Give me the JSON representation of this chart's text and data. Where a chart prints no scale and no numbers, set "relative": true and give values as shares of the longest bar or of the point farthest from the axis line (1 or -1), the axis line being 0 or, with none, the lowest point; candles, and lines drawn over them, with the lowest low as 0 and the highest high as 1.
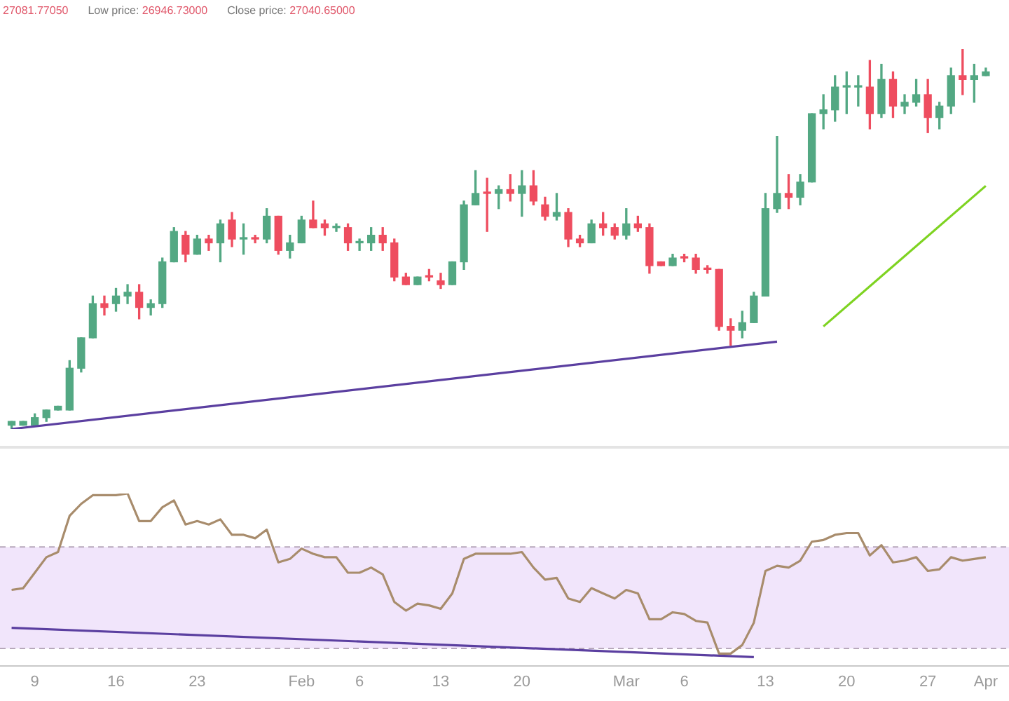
{
  "chart_data": [
    {
      "type": "candlestick",
      "relative": true,
      "tick_labels": false,
      "legend": false,
      "annotations": [
        "27081.77050",
        "Low price: 26946.73000",
        "Close price: 27040.65000"
      ],
      "xlim": [
        "--01-06",
        "--04-03"
      ],
      "x": [
        "--01-07",
        "--01-08",
        "--01-09",
        "--01-10",
        "--01-11",
        "--01-12",
        "--01-13",
        "--01-14",
        "--01-15",
        "--01-16",
        "--01-17",
        "--01-18",
        "--01-19",
        "--01-20",
        "--01-21",
        "--01-22",
        "--01-23",
        "--01-24",
        "--01-25",
        "--01-26",
        "--01-27",
        "--01-28",
        "--01-29",
        "--01-30",
        "--01-31",
        "--02-01",
        "--02-02",
        "--02-03",
        "--02-04",
        "--02-05",
        "--02-06",
        "--02-07",
        "--02-08",
        "--02-09",
        "--02-10",
        "--02-11",
        "--02-12",
        "--02-13",
        "--02-14",
        "--02-15",
        "--02-16",
        "--02-17",
        "--02-18",
        "--02-19",
        "--02-20",
        "--02-21",
        "--02-22",
        "--02-23",
        "--02-24",
        "--02-25",
        "--02-26",
        "--02-27",
        "--02-28",
        "--03-01",
        "--03-02",
        "--03-03",
        "--03-04",
        "--03-05",
        "--03-06",
        "--03-07",
        "--03-08",
        "--03-09",
        "--03-10",
        "--03-11",
        "--03-12",
        "--03-13",
        "--03-14",
        "--03-15",
        "--03-16",
        "--03-17",
        "--03-18",
        "--03-19",
        "--03-20",
        "--03-21",
        "--03-22",
        "--03-23",
        "--03-24",
        "--03-25",
        "--03-26",
        "--03-27",
        "--03-28",
        "--03-29",
        "--03-30",
        "--03-31",
        "--04-01"
      ],
      "ohlc": [
        [
          0.01,
          0.02,
          0,
          0.02
        ],
        [
          0.01,
          0.02,
          0.01,
          0.02
        ],
        [
          0.01,
          0.04,
          0.01,
          0.03
        ],
        [
          0.03,
          0.05,
          0.02,
          0.05
        ],
        [
          0.05,
          0.06,
          0.05,
          0.06
        ],
        [
          0.05,
          0.18,
          0.05,
          0.16
        ],
        [
          0.16,
          0.24,
          0.15,
          0.24
        ],
        [
          0.24,
          0.35,
          0.24,
          0.33
        ],
        [
          0.33,
          0.35,
          0.3,
          0.32
        ],
        [
          0.33,
          0.37,
          0.31,
          0.35
        ],
        [
          0.35,
          0.38,
          0.33,
          0.36
        ],
        [
          0.36,
          0.38,
          0.29,
          0.32
        ],
        [
          0.32,
          0.34,
          0.3,
          0.33
        ],
        [
          0.33,
          0.45,
          0.32,
          0.44
        ],
        [
          0.44,
          0.53,
          0.44,
          0.52
        ],
        [
          0.51,
          0.52,
          0.44,
          0.46
        ],
        [
          0.46,
          0.51,
          0.46,
          0.5
        ],
        [
          0.5,
          0.51,
          0.47,
          0.49
        ],
        [
          0.49,
          0.55,
          0.44,
          0.54
        ],
        [
          0.55,
          0.57,
          0.48,
          0.5
        ],
        [
          0.5,
          0.54,
          0.46,
          0.5
        ],
        [
          0.5,
          0.51,
          0.49,
          0.5
        ],
        [
          0.5,
          0.58,
          0.49,
          0.56
        ],
        [
          0.56,
          0.56,
          0.46,
          0.47
        ],
        [
          0.47,
          0.51,
          0.45,
          0.49
        ],
        [
          0.49,
          0.56,
          0.49,
          0.55
        ],
        [
          0.55,
          0.6,
          0.53,
          0.53
        ],
        [
          0.54,
          0.55,
          0.51,
          0.53
        ],
        [
          0.53,
          0.54,
          0.52,
          0.53
        ],
        [
          0.53,
          0.54,
          0.47,
          0.49
        ],
        [
          0.49,
          0.5,
          0.47,
          0.49
        ],
        [
          0.49,
          0.53,
          0.47,
          0.51
        ],
        [
          0.51,
          0.53,
          0.47,
          0.49
        ],
        [
          0.49,
          0.5,
          0.39,
          0.4
        ],
        [
          0.4,
          0.41,
          0.38,
          0.38
        ],
        [
          0.38,
          0.4,
          0.38,
          0.4
        ],
        [
          0.4,
          0.42,
          0.39,
          0.4
        ],
        [
          0.39,
          0.41,
          0.37,
          0.38
        ],
        [
          0.38,
          0.44,
          0.38,
          0.44
        ],
        [
          0.44,
          0.6,
          0.42,
          0.59
        ],
        [
          0.59,
          0.68,
          0.59,
          0.62
        ],
        [
          0.62,
          0.66,
          0.52,
          0.62
        ],
        [
          0.62,
          0.64,
          0.58,
          0.63
        ],
        [
          0.63,
          0.67,
          0.6,
          0.62
        ],
        [
          0.62,
          0.68,
          0.56,
          0.64
        ],
        [
          0.64,
          0.68,
          0.59,
          0.6
        ],
        [
          0.59,
          0.61,
          0.55,
          0.56
        ],
        [
          0.56,
          0.62,
          0.55,
          0.57
        ],
        [
          0.57,
          0.58,
          0.48,
          0.5
        ],
        [
          0.5,
          0.51,
          0.48,
          0.49
        ],
        [
          0.49,
          0.55,
          0.49,
          0.54
        ],
        [
          0.54,
          0.57,
          0.51,
          0.53
        ],
        [
          0.53,
          0.54,
          0.5,
          0.51
        ],
        [
          0.51,
          0.58,
          0.5,
          0.54
        ],
        [
          0.54,
          0.56,
          0.52,
          0.53
        ],
        [
          0.53,
          0.54,
          0.41,
          0.43
        ],
        [
          0.44,
          0.44,
          0.43,
          0.43
        ],
        [
          0.43,
          0.46,
          0.43,
          0.45
        ],
        [
          0.45,
          0.46,
          0.44,
          0.45
        ],
        [
          0.45,
          0.46,
          0.41,
          0.42
        ],
        [
          0.42,
          0.43,
          0.41,
          0.42
        ],
        [
          0.42,
          0.42,
          0.26,
          0.27
        ],
        [
          0.27,
          0.29,
          0.22,
          0.26
        ],
        [
          0.26,
          0.31,
          0.24,
          0.28
        ],
        [
          0.28,
          0.36,
          0.28,
          0.35
        ],
        [
          0.35,
          0.62,
          0.35,
          0.58
        ],
        [
          0.58,
          0.77,
          0.57,
          0.62
        ],
        [
          0.62,
          0.67,
          0.58,
          0.61
        ],
        [
          0.61,
          0.67,
          0.59,
          0.65
        ],
        [
          0.65,
          0.83,
          0.65,
          0.83
        ],
        [
          0.83,
          0.88,
          0.79,
          0.84
        ],
        [
          0.84,
          0.93,
          0.81,
          0.9
        ],
        [
          0.9,
          0.94,
          0.83,
          0.9
        ],
        [
          0.9,
          0.93,
          0.85,
          0.9
        ],
        [
          0.9,
          0.97,
          0.79,
          0.83
        ],
        [
          0.83,
          0.96,
          0.82,
          0.92
        ],
        [
          0.92,
          0.94,
          0.82,
          0.85
        ],
        [
          0.85,
          0.88,
          0.83,
          0.86
        ],
        [
          0.86,
          0.92,
          0.85,
          0.88
        ],
        [
          0.88,
          0.92,
          0.78,
          0.82
        ],
        [
          0.82,
          0.86,
          0.79,
          0.85
        ],
        [
          0.85,
          0.95,
          0.83,
          0.93
        ],
        [
          0.93,
          1,
          0.88,
          0.92
        ],
        [
          0.92,
          0.96,
          0.86,
          0.93
        ],
        [
          0.93,
          0.95,
          0.93,
          0.94
        ]
      ],
      "colors": [
        "#53a883",
        "#53a883",
        "#53a883",
        "#53a883",
        "#53a883",
        "#53a883",
        "#53a883",
        "#53a883",
        "#ee4d5f",
        "#53a883",
        "#53a883",
        "#ee4d5f",
        "#53a883",
        "#53a883",
        "#53a883",
        "#ee4d5f",
        "#53a883",
        "#ee4d5f",
        "#53a883",
        "#ee4d5f",
        "#53a883",
        "#ee4d5f",
        "#53a883",
        "#ee4d5f",
        "#53a883",
        "#53a883",
        "#ee4d5f",
        "#ee4d5f",
        "#53a883",
        "#ee4d5f",
        "#53a883",
        "#53a883",
        "#ee4d5f",
        "#ee4d5f",
        "#ee4d5f",
        "#53a883",
        "#ee4d5f",
        "#ee4d5f",
        "#53a883",
        "#53a883",
        "#53a883",
        "#ee4d5f",
        "#53a883",
        "#ee4d5f",
        "#53a883",
        "#ee4d5f",
        "#ee4d5f",
        "#53a883",
        "#ee4d5f",
        "#ee4d5f",
        "#53a883",
        "#ee4d5f",
        "#ee4d5f",
        "#53a883",
        "#ee4d5f",
        "#ee4d5f",
        "#ee4d5f",
        "#53a883",
        "#ee4d5f",
        "#ee4d5f",
        "#ee4d5f",
        "#ee4d5f",
        "#ee4d5f",
        "#53a883",
        "#53a883",
        "#53a883",
        "#53a883",
        "#ee4d5f",
        "#53a883",
        "#53a883",
        "#53a883",
        "#53a883",
        "#53a883",
        "#53a883",
        "#ee4d5f",
        "#53a883",
        "#ee4d5f",
        "#53a883",
        "#53a883",
        "#ee4d5f",
        "#53a883",
        "#53a883",
        "#ee4d5f",
        "#53a883",
        "#53a883"
      ],
      "series": [
        {
          "type": "line",
          "color": "#5b3fa0",
          "x": [
            "--01-07",
            "--03-14"
          ],
          "values": [
            0,
            0.23
          ]
        },
        {
          "type": "line",
          "color": "#7ed321",
          "x": [
            "--03-18",
            "--04-01"
          ],
          "values": [
            0.27,
            0.64
          ]
        }
      ]
    },
    {
      "type": "line",
      "relative": true,
      "tick_labels": "x",
      "legend": false,
      "xlim": [
        "--01-06",
        "--04-03"
      ],
      "xticks": [
        {
          "value": "--01-09",
          "label": "9"
        },
        {
          "value": "--01-16",
          "label": "16"
        },
        {
          "value": "--01-23",
          "label": "23"
        },
        {
          "value": "--02-01",
          "label": "Feb"
        },
        {
          "value": "--02-06",
          "label": "6"
        },
        {
          "value": "--02-13",
          "label": "13"
        },
        {
          "value": "--02-20",
          "label": "20"
        },
        {
          "value": "--03-01",
          "label": "Mar"
        },
        {
          "value": "--03-06",
          "label": "6"
        },
        {
          "value": "--03-13",
          "label": "13"
        },
        {
          "value": "--03-20",
          "label": "20"
        },
        {
          "value": "--03-27",
          "label": "27"
        },
        {
          "value": "--04-01",
          "label": "Apr"
        }
      ],
      "bands": [
        {
          "axis": "y",
          "from": 0.1,
          "to": 0.69,
          "color": "#f1e5fb"
        }
      ],
      "ref_lines": [
        {
          "axis": "y",
          "value": 0.69,
          "color": "#b8a8bc",
          "line_style": "dashed"
        },
        {
          "axis": "y",
          "value": 0.1,
          "color": "#b8a8bc",
          "line_style": "dashed"
        }
      ],
      "series": [
        {
          "color": "#a88c6c",
          "x": [
            "--01-07",
            "--01-08",
            "--01-09",
            "--01-10",
            "--01-11",
            "--01-12",
            "--01-13",
            "--01-14",
            "--01-15",
            "--01-16",
            "--01-17",
            "--01-18",
            "--01-19",
            "--01-20",
            "--01-21",
            "--01-22",
            "--01-23",
            "--01-24",
            "--01-25",
            "--01-26",
            "--01-27",
            "--01-28",
            "--01-29",
            "--01-30",
            "--01-31",
            "--02-01",
            "--02-02",
            "--02-03",
            "--02-04",
            "--02-05",
            "--02-06",
            "--02-07",
            "--02-08",
            "--02-09",
            "--02-10",
            "--02-11",
            "--02-12",
            "--02-13",
            "--02-14",
            "--02-15",
            "--02-16",
            "--02-17",
            "--02-18",
            "--02-19",
            "--02-20",
            "--02-21",
            "--02-22",
            "--02-23",
            "--02-24",
            "--02-25",
            "--02-26",
            "--02-27",
            "--02-28",
            "--03-01",
            "--03-02",
            "--03-03",
            "--03-04",
            "--03-05",
            "--03-06",
            "--03-07",
            "--03-08",
            "--03-09",
            "--03-10",
            "--03-11",
            "--03-12",
            "--03-13",
            "--03-14",
            "--03-15",
            "--03-16",
            "--03-17",
            "--03-18",
            "--03-19",
            "--03-20",
            "--03-21",
            "--03-22",
            "--03-23",
            "--03-24",
            "--03-25",
            "--03-26",
            "--03-27",
            "--03-28",
            "--03-29",
            "--03-30",
            "--03-31",
            "--04-01"
          ],
          "values": [
            0.44,
            0.45,
            0.54,
            0.63,
            0.66,
            0.87,
            0.94,
            0.99,
            0.99,
            0.99,
            1,
            0.84,
            0.84,
            0.92,
            0.96,
            0.82,
            0.84,
            0.82,
            0.85,
            0.76,
            0.76,
            0.74,
            0.79,
            0.6,
            0.62,
            0.68,
            0.65,
            0.63,
            0.63,
            0.54,
            0.54,
            0.57,
            0.53,
            0.37,
            0.32,
            0.36,
            0.35,
            0.33,
            0.42,
            0.62,
            0.65,
            0.65,
            0.65,
            0.65,
            0.66,
            0.57,
            0.5,
            0.51,
            0.39,
            0.37,
            0.45,
            0.42,
            0.39,
            0.44,
            0.42,
            0.27,
            0.27,
            0.31,
            0.3,
            0.26,
            0.25,
            0.07,
            0.07,
            0.12,
            0.25,
            0.55,
            0.58,
            0.57,
            0.61,
            0.72,
            0.73,
            0.76,
            0.77,
            0.77,
            0.64,
            0.7,
            0.6,
            0.61,
            0.63,
            0.55,
            0.56,
            0.63,
            0.61,
            0.62,
            0.63
          ]
        },
        {
          "color": "#5b3fa0",
          "x": [
            "--01-07",
            "--03-12"
          ],
          "values": [
            0.22,
            0.05
          ]
        }
      ]
    }
  ]
}
